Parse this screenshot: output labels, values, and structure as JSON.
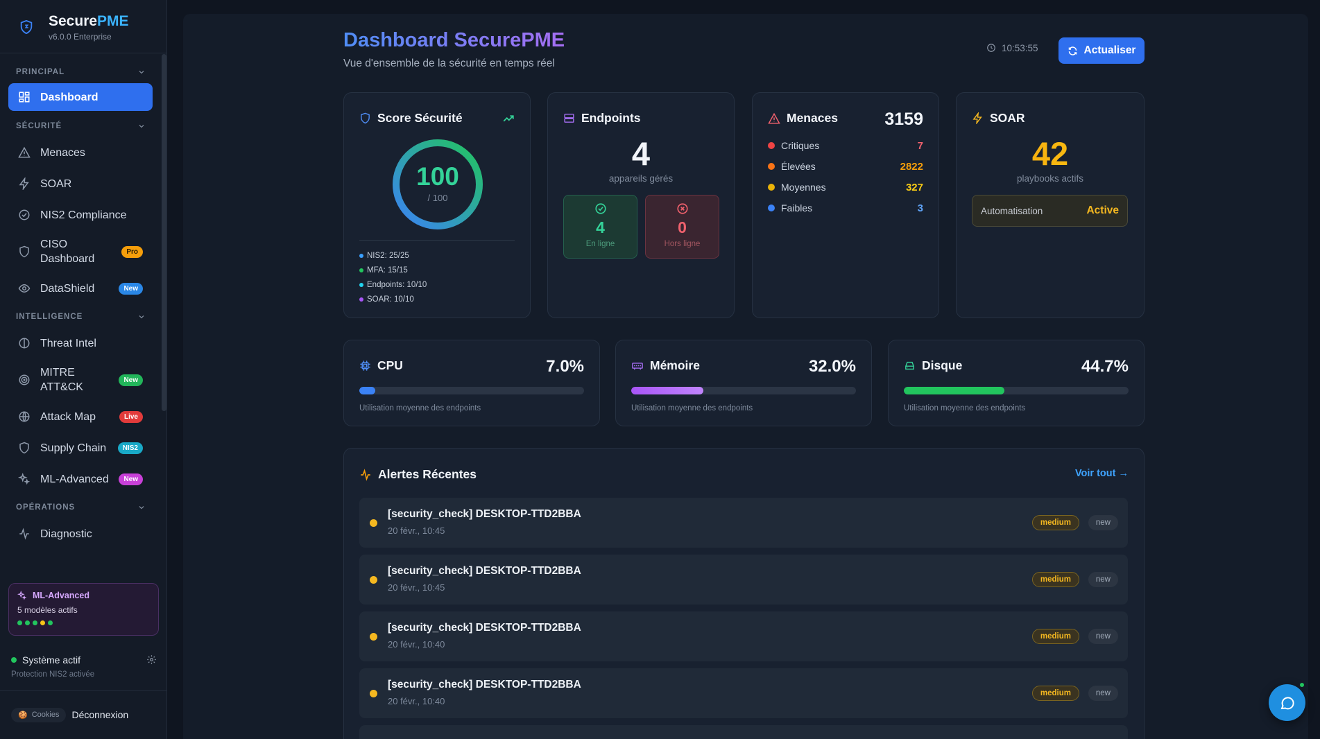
{
  "brand": {
    "name_main": "Secure",
    "name_accent": "PME",
    "version": "v6.0.0 Enterprise"
  },
  "nav": {
    "sections": {
      "principal": "PRINCIPAL",
      "securite": "SÉCURITÉ",
      "intelligence": "INTELLIGENCE",
      "operations": "OPÉRATIONS"
    },
    "items": {
      "dashboard": "Dashboard",
      "menaces": "Menaces",
      "soar": "SOAR",
      "nis2": "NIS2 Compliance",
      "ciso": "CISO Dashboard",
      "datashield": "DataShield",
      "threat_intel": "Threat Intel",
      "mitre": "MITRE ATT&CK",
      "attack_map": "Attack Map",
      "supply_chain": "Supply Chain",
      "ml_advanced": "ML-Advanced",
      "diagnostic": "Diagnostic"
    },
    "badges": {
      "ciso": "Pro",
      "datashield": "New",
      "mitre": "New",
      "attack_map": "Live",
      "supply_chain": "NIS2",
      "ml_advanced": "New"
    }
  },
  "ml_card": {
    "title": "ML-Advanced",
    "subtitle": "5 modèles actifs"
  },
  "system": {
    "status": "Système actif",
    "subtitle": "Protection NIS2 activée"
  },
  "logout": {
    "pill": "Cookies",
    "label": "Déconnexion"
  },
  "header": {
    "title": "Dashboard SecurePME",
    "subtitle": "Vue d'ensemble de la sécurité en temps réel",
    "time": "10:53:55",
    "refresh_label": "Actualiser"
  },
  "score": {
    "title": "Score Sécurité",
    "value": "100",
    "max": "/ 100",
    "fraction": 1.0,
    "items": [
      "NIS2: 25/25",
      "MFA: 15/15",
      "Endpoints: 10/10",
      "SOAR: 10/10"
    ]
  },
  "endpoints": {
    "title": "Endpoints",
    "total": "4",
    "total_label": "appareils gérés",
    "online": "4",
    "online_label": "En ligne",
    "offline": "0",
    "offline_label": "Hors ligne"
  },
  "menaces": {
    "title": "Menaces",
    "total": "3159",
    "rows": [
      {
        "label": "Critiques",
        "value": "7"
      },
      {
        "label": "Élevées",
        "value": "2822"
      },
      {
        "label": "Moyennes",
        "value": "327"
      },
      {
        "label": "Faibles",
        "value": "3"
      }
    ]
  },
  "soar": {
    "title": "SOAR",
    "value": "42",
    "label": "playbooks actifs",
    "auto_label": "Automatisation",
    "auto_status": "Active"
  },
  "metrics": {
    "cpu": {
      "title": "CPU",
      "value": "7.0%",
      "fraction": 0.07,
      "sub": "Utilisation moyenne des endpoints"
    },
    "memoire": {
      "title": "Mémoire",
      "value": "32.0%",
      "fraction": 0.32,
      "sub": "Utilisation moyenne des endpoints"
    },
    "disque": {
      "title": "Disque",
      "value": "44.7%",
      "fraction": 0.447,
      "sub": "Utilisation moyenne des endpoints"
    }
  },
  "alerts": {
    "title": "Alertes Récentes",
    "see_all": "Voir tout →",
    "items": [
      {
        "title": "[security_check] DESKTOP-TTD2BBA",
        "time": "20 févr., 10:45",
        "severity": "medium",
        "status": "new"
      },
      {
        "title": "[security_check] DESKTOP-TTD2BBA",
        "time": "20 févr., 10:45",
        "severity": "medium",
        "status": "new"
      },
      {
        "title": "[security_check] DESKTOP-TTD2BBA",
        "time": "20 févr., 10:40",
        "severity": "medium",
        "status": "new"
      },
      {
        "title": "[security_check] DESKTOP-TTD2BBA",
        "time": "20 févr., 10:40",
        "severity": "medium",
        "status": "new"
      }
    ]
  },
  "colors": {
    "accent": "#2f6fee",
    "success": "#34d399",
    "danger": "#f0616d",
    "warning": "#f5b820",
    "orange": "#f59e0b"
  }
}
